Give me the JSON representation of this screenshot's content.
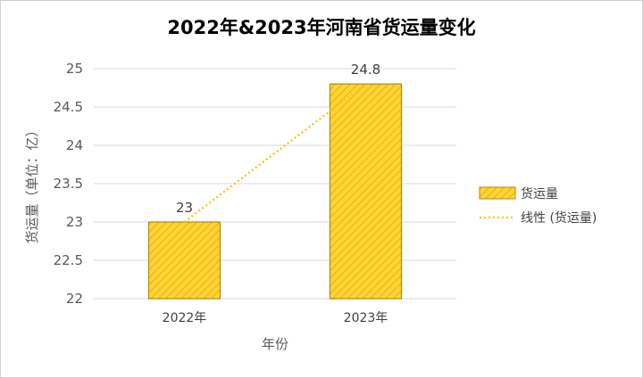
{
  "chart_data": {
    "type": "bar",
    "title": "2022年&2023年河南省货运量变化",
    "categories": [
      "2022年",
      "2023年"
    ],
    "series": [
      {
        "name": "货运量",
        "values": [
          23,
          24.8
        ],
        "data_labels": [
          "23",
          "24.8"
        ]
      }
    ],
    "trendline": {
      "name": "线性 (货运量)",
      "type": "linear",
      "style": "dotted"
    },
    "xlabel": "年份",
    "ylabel": "货运量（单位：亿）",
    "ylim": [
      22,
      25
    ],
    "yticks": [
      "22",
      "22.5",
      "23",
      "23.5",
      "24",
      "24.5",
      "25"
    ],
    "ytick_values": [
      22,
      22.5,
      23,
      23.5,
      24,
      24.5,
      25
    ],
    "grid": true,
    "legend_position": "right",
    "colors": {
      "bar_fill": "#FFD43B",
      "bar_hatch": "#F2B600",
      "bar_border": "#B8860B",
      "trendline": "#FFC000",
      "grid": "#D9D9D9"
    }
  }
}
